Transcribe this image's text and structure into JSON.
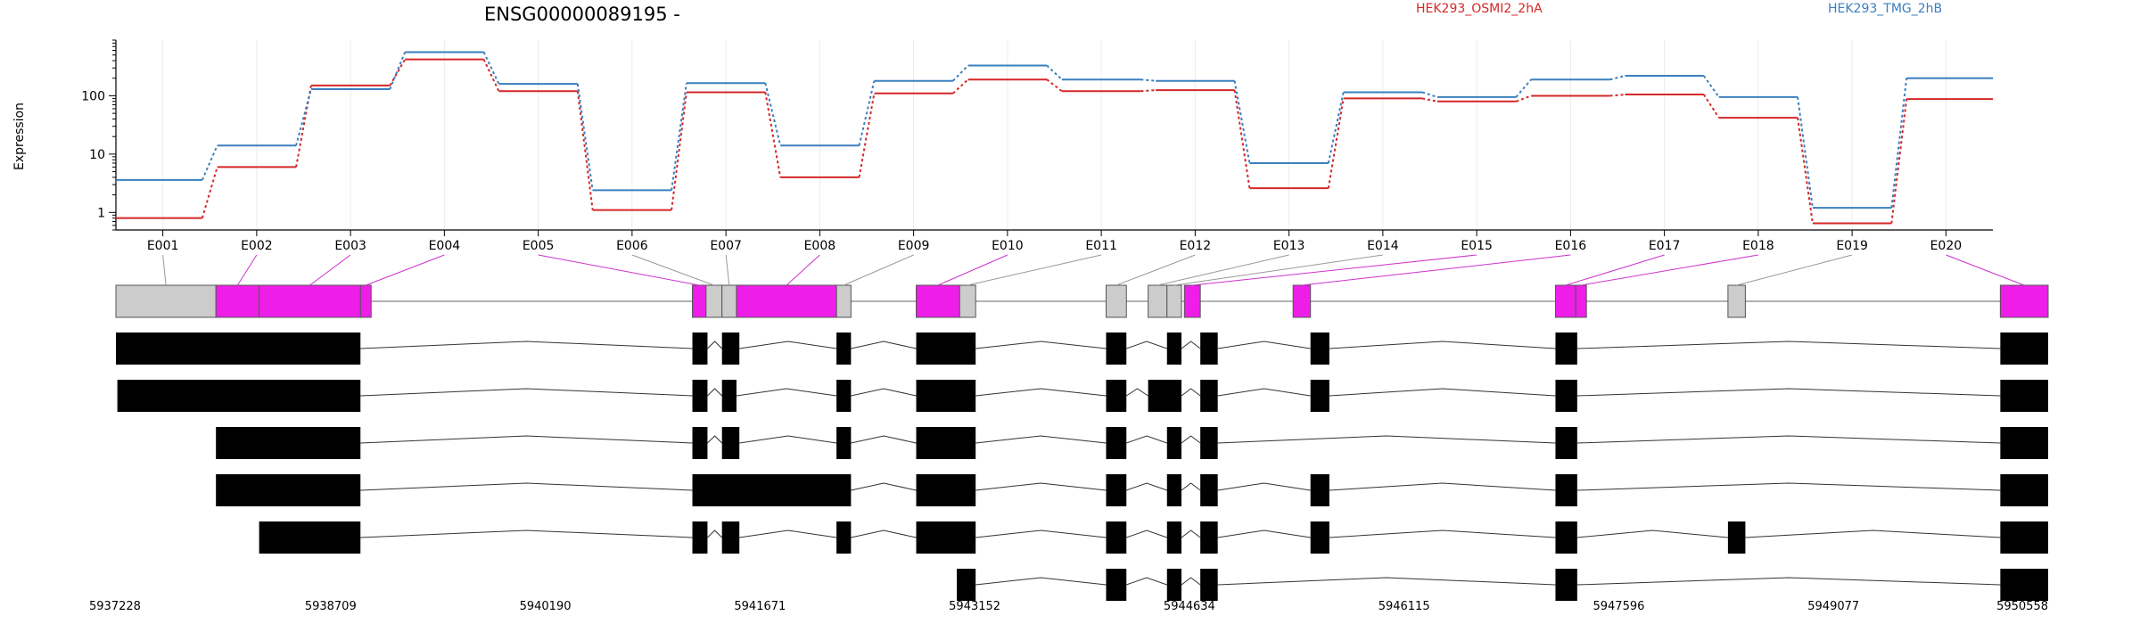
{
  "chart_data": {
    "type": "line",
    "title": "ENSG00000089195 -",
    "xlabel": "",
    "ylabel": "Expression",
    "y_scale": "log",
    "y_ticks": [
      1,
      10,
      100
    ],
    "ylim": [
      0.5,
      900
    ],
    "grid": "vertical lines at exon centers",
    "legend_position": "top-right",
    "categories": [
      "E001",
      "E002",
      "E003",
      "E004",
      "E005",
      "E006",
      "E007",
      "E008",
      "E009",
      "E010",
      "E011",
      "E012",
      "E013",
      "E014",
      "E015",
      "E016",
      "E017",
      "E018",
      "E019",
      "E020"
    ],
    "series": [
      {
        "name": "HEK293_OSMI2_2hA",
        "color": "#d62728",
        "values": [
          0.8,
          6,
          150,
          420,
          120,
          1.1,
          115,
          4,
          110,
          190,
          120,
          125,
          2.6,
          90,
          80,
          100,
          105,
          42,
          0.65,
          88
        ]
      },
      {
        "name": "HEK293_TMG_2hB",
        "color": "#3a7fbf",
        "values": [
          3.6,
          14,
          130,
          560,
          160,
          2.4,
          165,
          14,
          180,
          330,
          190,
          180,
          7,
          115,
          95,
          190,
          220,
          95,
          1.2,
          200
        ]
      }
    ]
  },
  "gene_model": {
    "coordinate_labels": [
      "5937228",
      "5938709",
      "5940190",
      "5941671",
      "5943152",
      "5944634",
      "5946115",
      "5947596",
      "5949077",
      "5950558"
    ],
    "coord_min": 5937228,
    "coord_max": 5950558,
    "colors": {
      "significant": "#ee1ee8",
      "not_significant": "#cccccc",
      "transcript": "#000000",
      "connector_significant": "#cc33cc",
      "connector_default": "#999999"
    },
    "exons": [
      {
        "id": "E001",
        "start": 5937228,
        "end": 5937918,
        "sig": false
      },
      {
        "id": "E002",
        "start": 5937918,
        "end": 5938216,
        "sig": true
      },
      {
        "id": "E003",
        "start": 5938216,
        "end": 5938915,
        "sig": true
      },
      {
        "id": "E004",
        "start": 5938915,
        "end": 5938915,
        "sig": true
      },
      {
        "id": "E005",
        "start": 5941205,
        "end": 5941299,
        "sig": true
      },
      {
        "id": "E006",
        "start": 5941299,
        "end": 5941409,
        "sig": false
      },
      {
        "id": "E007",
        "start": 5941409,
        "end": 5941509,
        "sig": false
      },
      {
        "id": "E008",
        "start": 5941509,
        "end": 5942199,
        "sig": true
      },
      {
        "id": "E009",
        "start": 5942199,
        "end": 5942299,
        "sig": false
      },
      {
        "id": "E010",
        "start": 5942749,
        "end": 5943049,
        "sig": true
      },
      {
        "id": "E011",
        "start": 5943049,
        "end": 5943159,
        "sig": false
      },
      {
        "id": "E012",
        "start": 5944059,
        "end": 5944199,
        "sig": false
      },
      {
        "id": "E013",
        "start": 5944349,
        "end": 5944479,
        "sig": false
      },
      {
        "id": "E014",
        "start": 5944479,
        "end": 5944579,
        "sig": false
      },
      {
        "id": "E015",
        "start": 5944599,
        "end": 5944709,
        "sig": true
      },
      {
        "id": "E016",
        "start": 5945349,
        "end": 5945469,
        "sig": true
      },
      {
        "id": "E017",
        "start": 5947159,
        "end": 5947299,
        "sig": true
      },
      {
        "id": "E018",
        "start": 5947299,
        "end": 5947309,
        "sig": true
      },
      {
        "id": "E019",
        "start": 5948349,
        "end": 5948469,
        "sig": false
      },
      {
        "id": "E020",
        "start": 5950228,
        "end": 5950558,
        "sig": true
      }
    ],
    "transcripts": [
      [
        [
          5937228,
          5938915
        ],
        [
          5941205,
          5941309
        ],
        [
          5941409,
          5941529
        ],
        [
          5942199,
          5942299
        ],
        [
          5942749,
          5943159
        ],
        [
          5944059,
          5944199
        ],
        [
          5944479,
          5944579
        ],
        [
          5944709,
          5944829
        ],
        [
          5945469,
          5945599
        ],
        [
          5947159,
          5947309
        ],
        [
          5950228,
          5950558
        ]
      ],
      [
        [
          5937238,
          5938915
        ],
        [
          5941205,
          5941309
        ],
        [
          5941409,
          5941509
        ],
        [
          5942199,
          5942299
        ],
        [
          5942749,
          5943159
        ],
        [
          5944059,
          5944199
        ],
        [
          5944349,
          5944579
        ],
        [
          5944709,
          5944829
        ],
        [
          5945469,
          5945599
        ],
        [
          5947159,
          5947309
        ],
        [
          5950228,
          5950558
        ]
      ],
      [
        [
          5937918,
          5938915
        ],
        [
          5941205,
          5941309
        ],
        [
          5941409,
          5941529
        ],
        [
          5942199,
          5942299
        ],
        [
          5942749,
          5943159
        ],
        [
          5944059,
          5944199
        ],
        [
          5944479,
          5944579
        ],
        [
          5944709,
          5944829
        ],
        [
          5947159,
          5947309
        ],
        [
          5950228,
          5950558
        ]
      ],
      [
        [
          5937918,
          5938915
        ],
        [
          5941205,
          5942299
        ],
        [
          5942749,
          5943159
        ],
        [
          5944059,
          5944199
        ],
        [
          5944479,
          5944579
        ],
        [
          5944709,
          5944829
        ],
        [
          5945469,
          5945599
        ],
        [
          5947159,
          5947309
        ],
        [
          5950228,
          5950558
        ]
      ],
      [
        [
          5938216,
          5938915
        ],
        [
          5941205,
          5941309
        ],
        [
          5941409,
          5941529
        ],
        [
          5942199,
          5942299
        ],
        [
          5942749,
          5943159
        ],
        [
          5944059,
          5944199
        ],
        [
          5944479,
          5944579
        ],
        [
          5944709,
          5944829
        ],
        [
          5945469,
          5945599
        ],
        [
          5947159,
          5947309
        ],
        [
          5948349,
          5948469
        ],
        [
          5950228,
          5950558
        ]
      ],
      [
        [
          5943029,
          5943159
        ],
        [
          5944059,
          5944199
        ],
        [
          5944479,
          5944579
        ],
        [
          5944709,
          5944829
        ],
        [
          5947159,
          5947309
        ],
        [
          5950228,
          5950558
        ]
      ]
    ]
  }
}
